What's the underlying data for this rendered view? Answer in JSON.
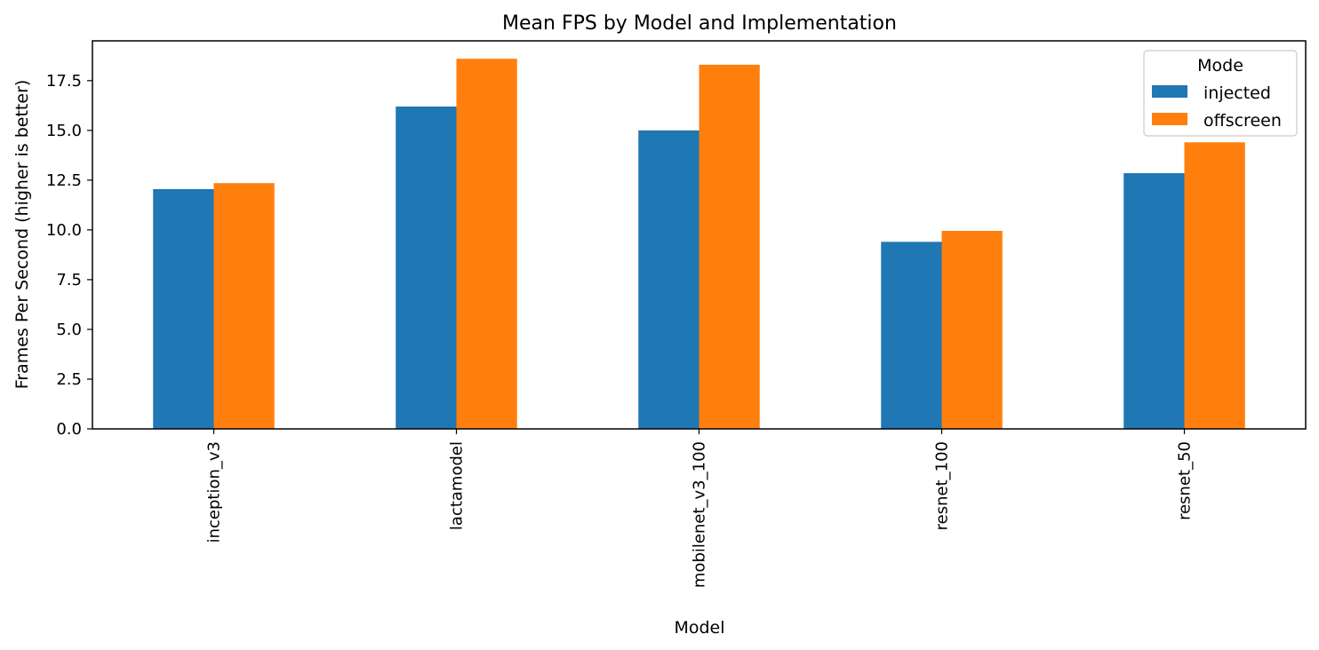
{
  "chart_data": {
    "type": "bar",
    "title": "Mean FPS by Model and Implementation",
    "xlabel": "Model",
    "ylabel": "Frames Per Second (higher is better)",
    "categories": [
      "inception_v3",
      "lactamodel",
      "mobilenet_v3_100",
      "resnet_100",
      "resnet_50"
    ],
    "series": [
      {
        "name": "injected",
        "color": "#1f77b4",
        "values": [
          12.05,
          16.2,
          15.0,
          9.4,
          12.85
        ]
      },
      {
        "name": "offscreen",
        "color": "#ff7f0e",
        "values": [
          12.35,
          18.6,
          18.3,
          9.95,
          14.4
        ]
      }
    ],
    "ylim": [
      0,
      19.5
    ],
    "yticks": [
      "0.0",
      "2.5",
      "5.0",
      "7.5",
      "10.0",
      "12.5",
      "15.0",
      "17.5"
    ],
    "legend": {
      "title": "Mode",
      "position": "top-right"
    },
    "grid": false
  }
}
